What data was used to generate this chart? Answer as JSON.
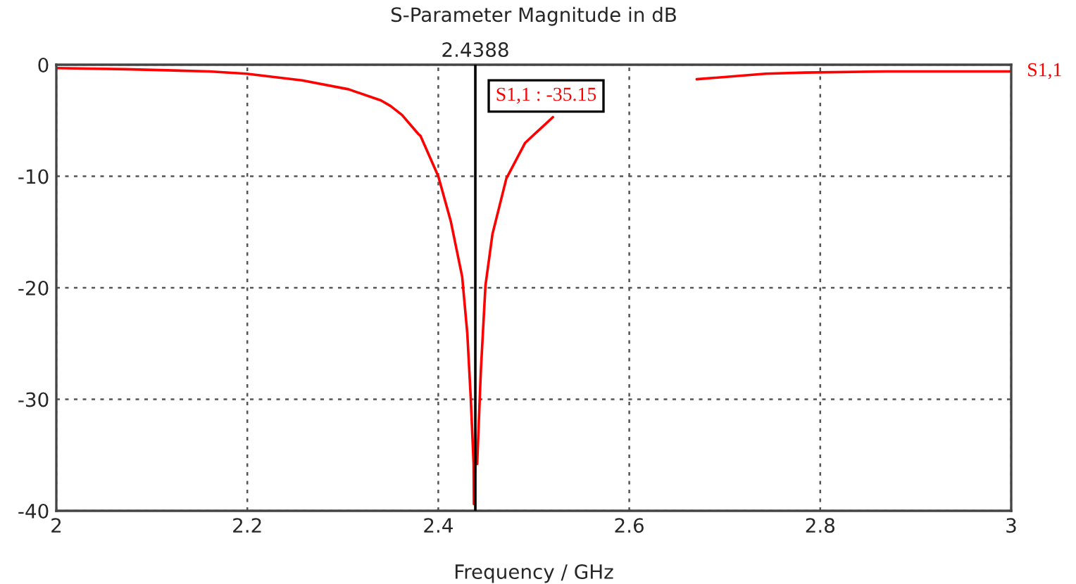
{
  "chart_data": {
    "type": "line",
    "title": "S-Parameter Magnitude in dB",
    "xlabel": "Frequency / GHz",
    "xlim": [
      2,
      3
    ],
    "xticks": [
      2,
      2.2,
      2.4,
      2.6,
      2.8,
      3
    ],
    "ylim": [
      -40,
      0
    ],
    "yticks": [
      -40,
      -30,
      -20,
      -10,
      0
    ],
    "grid": true,
    "line_style": "solid",
    "marker": "none",
    "series": [
      {
        "name": "S1,1",
        "color": "#ff0000",
        "x": [
          2.0,
          2.073,
          2.16,
          2.199,
          2.2575,
          2.306,
          2.34,
          2.35,
          2.362,
          2.379,
          2.3815,
          2.4,
          2.413,
          2.425,
          2.4304,
          2.434,
          2.437,
          2.4373,
          2.4388,
          2.4407,
          2.4446,
          2.4494,
          2.4567,
          2.4713,
          2.491,
          2.52,
          2.53,
          2.66,
          2.6706,
          2.743,
          2.784,
          2.87,
          3.0
        ],
        "values": [
          -0.3,
          -0.4,
          -0.6,
          -0.8,
          -1.4,
          -2.2,
          -3.2,
          -3.7,
          -4.5,
          -6.2,
          -6.4,
          -10.0,
          -14.0,
          -19.0,
          -24.1,
          -29.9,
          -35.8,
          -39.4,
          -35.15,
          -35.8,
          -27.4,
          -19.8,
          -15.2,
          -10.2,
          -7.0,
          -4.7,
          null,
          null,
          -1.3,
          -0.8,
          -0.7,
          -0.6,
          -0.6
        ]
      }
    ],
    "ref_lines": [
      {
        "axis": "x",
        "value": 2.4388,
        "label": "2.4388",
        "color": "#000000",
        "line_style": "solid"
      }
    ],
    "annotations": [
      "S1,1 : -35.15"
    ]
  }
}
